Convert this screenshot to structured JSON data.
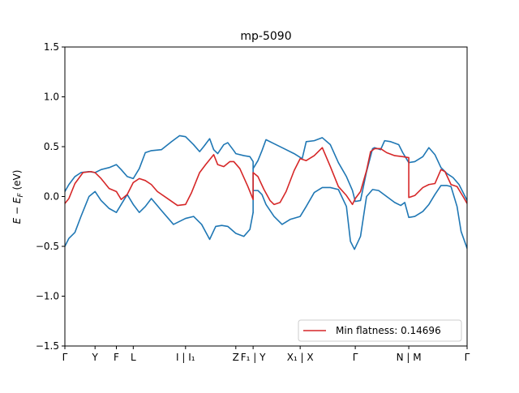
{
  "chart_data": {
    "type": "line",
    "title": "mp-5090",
    "xlabel": "",
    "ylabel": "E − E",
    "ylabel_sub": "F",
    "ylabel_unit": " (eV)",
    "xlim": [
      0,
      1
    ],
    "ylim": [
      -1.5,
      1.5
    ],
    "yticks": [
      -1.5,
      -1.0,
      -0.5,
      0.0,
      0.5,
      1.0,
      1.5
    ],
    "ytick_labels": [
      "−1.5",
      "−1.0",
      "−0.5",
      "0.0",
      "0.5",
      "1.0",
      "1.5"
    ],
    "xticks": [
      {
        "x": 0.0,
        "label": "Γ"
      },
      {
        "x": 0.075,
        "label": "Y"
      },
      {
        "x": 0.128,
        "label": "F"
      },
      {
        "x": 0.17,
        "label": "L"
      },
      {
        "x": 0.3,
        "label": "I | I₁"
      },
      {
        "x": 0.425,
        "label": "Z"
      },
      {
        "x": 0.468,
        "label": "F₁ | Y"
      },
      {
        "x": 0.585,
        "label": "X₁ | X"
      },
      {
        "x": 0.722,
        "label": "Γ"
      },
      {
        "x": 0.855,
        "label": "N | M"
      },
      {
        "x": 1.0,
        "label": "Γ"
      }
    ],
    "legend": {
      "label": "Min flatness: 0.14696",
      "location": "lower-right"
    },
    "grid": false,
    "series": [
      {
        "color": "#1f77b4",
        "points": [
          [
            0.0,
            0.05
          ],
          [
            0.01,
            0.12
          ],
          [
            0.025,
            0.2
          ],
          [
            0.04,
            0.24
          ],
          [
            0.06,
            0.25
          ],
          [
            0.075,
            0.24
          ],
          [
            0.09,
            0.27
          ],
          [
            0.11,
            0.29
          ],
          [
            0.128,
            0.32
          ],
          [
            0.14,
            0.27
          ],
          [
            0.155,
            0.2
          ],
          [
            0.17,
            0.18
          ],
          [
            0.185,
            0.28
          ],
          [
            0.2,
            0.44
          ],
          [
            0.215,
            0.46
          ],
          [
            0.24,
            0.47
          ],
          [
            0.265,
            0.55
          ],
          [
            0.285,
            0.61
          ],
          [
            0.3,
            0.6
          ],
          [
            0.32,
            0.52
          ],
          [
            0.335,
            0.45
          ],
          [
            0.345,
            0.5
          ],
          [
            0.36,
            0.58
          ],
          [
            0.37,
            0.47
          ],
          [
            0.38,
            0.43
          ],
          [
            0.395,
            0.52
          ],
          [
            0.405,
            0.54
          ],
          [
            0.42,
            0.46
          ],
          [
            0.425,
            0.43
          ],
          [
            0.445,
            0.41
          ],
          [
            0.46,
            0.4
          ],
          [
            0.468,
            0.35
          ],
          [
            0.468,
            -0.16
          ]
        ]
      },
      {
        "color": "#1f77b4",
        "points": [
          [
            0.0,
            -0.5
          ],
          [
            0.01,
            -0.42
          ],
          [
            0.025,
            -0.36
          ],
          [
            0.04,
            -0.2
          ],
          [
            0.06,
            0.0
          ],
          [
            0.075,
            0.05
          ],
          [
            0.09,
            -0.04
          ],
          [
            0.11,
            -0.12
          ],
          [
            0.128,
            -0.16
          ],
          [
            0.14,
            -0.08
          ],
          [
            0.155,
            0.02
          ],
          [
            0.17,
            -0.08
          ],
          [
            0.185,
            -0.16
          ],
          [
            0.2,
            -0.1
          ],
          [
            0.215,
            -0.02
          ],
          [
            0.24,
            -0.14
          ],
          [
            0.27,
            -0.28
          ],
          [
            0.3,
            -0.22
          ],
          [
            0.32,
            -0.2
          ],
          [
            0.34,
            -0.28
          ],
          [
            0.36,
            -0.43
          ],
          [
            0.375,
            -0.3
          ],
          [
            0.39,
            -0.29
          ],
          [
            0.405,
            -0.3
          ],
          [
            0.425,
            -0.37
          ],
          [
            0.445,
            -0.4
          ],
          [
            0.46,
            -0.33
          ],
          [
            0.468,
            -0.16
          ]
        ]
      },
      {
        "color": "#1f77b4",
        "points": [
          [
            0.468,
            0.28
          ],
          [
            0.48,
            0.36
          ],
          [
            0.49,
            0.46
          ],
          [
            0.5,
            0.57
          ],
          [
            0.52,
            0.53
          ],
          [
            0.545,
            0.48
          ],
          [
            0.57,
            0.43
          ],
          [
            0.59,
            0.38
          ],
          [
            0.6,
            0.55
          ],
          [
            0.62,
            0.56
          ],
          [
            0.64,
            0.59
          ],
          [
            0.66,
            0.52
          ],
          [
            0.68,
            0.34
          ],
          [
            0.7,
            0.2
          ],
          [
            0.715,
            0.06
          ],
          [
            0.722,
            -0.05
          ],
          [
            0.735,
            -0.04
          ],
          [
            0.75,
            0.25
          ],
          [
            0.765,
            0.48
          ],
          [
            0.77,
            0.49
          ],
          [
            0.785,
            0.47
          ],
          [
            0.795,
            0.56
          ],
          [
            0.81,
            0.55
          ],
          [
            0.83,
            0.52
          ],
          [
            0.84,
            0.44
          ],
          [
            0.855,
            0.34
          ],
          [
            0.87,
            0.35
          ],
          [
            0.89,
            0.4
          ],
          [
            0.905,
            0.49
          ],
          [
            0.92,
            0.42
          ],
          [
            0.935,
            0.29
          ],
          [
            0.95,
            0.23
          ],
          [
            0.965,
            0.19
          ],
          [
            0.98,
            0.12
          ],
          [
            1.0,
            -0.04
          ]
        ]
      },
      {
        "color": "#1f77b4",
        "points": [
          [
            0.468,
            0.06
          ],
          [
            0.48,
            0.06
          ],
          [
            0.49,
            0.02
          ],
          [
            0.5,
            -0.08
          ],
          [
            0.52,
            -0.2
          ],
          [
            0.54,
            -0.28
          ],
          [
            0.56,
            -0.23
          ],
          [
            0.585,
            -0.2
          ],
          [
            0.6,
            -0.1
          ],
          [
            0.62,
            0.04
          ],
          [
            0.64,
            0.09
          ],
          [
            0.66,
            0.09
          ],
          [
            0.68,
            0.07
          ],
          [
            0.7,
            -0.1
          ],
          [
            0.71,
            -0.45
          ],
          [
            0.72,
            -0.53
          ],
          [
            0.735,
            -0.4
          ],
          [
            0.75,
            0.0
          ],
          [
            0.765,
            0.07
          ],
          [
            0.78,
            0.06
          ],
          [
            0.8,
            0.0
          ],
          [
            0.82,
            -0.06
          ],
          [
            0.835,
            -0.09
          ],
          [
            0.845,
            -0.06
          ],
          [
            0.855,
            -0.21
          ],
          [
            0.87,
            -0.2
          ],
          [
            0.89,
            -0.15
          ],
          [
            0.905,
            -0.08
          ],
          [
            0.92,
            0.02
          ],
          [
            0.935,
            0.11
          ],
          [
            0.95,
            0.11
          ],
          [
            0.96,
            0.1
          ],
          [
            0.975,
            -0.1
          ],
          [
            0.985,
            -0.35
          ],
          [
            1.0,
            -0.52
          ]
        ]
      },
      {
        "color": "#d62728",
        "points": [
          [
            0.0,
            -0.07
          ],
          [
            0.01,
            -0.02
          ],
          [
            0.025,
            0.13
          ],
          [
            0.045,
            0.24
          ],
          [
            0.065,
            0.25
          ],
          [
            0.075,
            0.24
          ],
          [
            0.09,
            0.18
          ],
          [
            0.11,
            0.08
          ],
          [
            0.128,
            0.05
          ],
          [
            0.14,
            -0.03
          ],
          [
            0.155,
            0.02
          ],
          [
            0.17,
            0.14
          ],
          [
            0.185,
            0.18
          ],
          [
            0.2,
            0.16
          ],
          [
            0.215,
            0.12
          ],
          [
            0.23,
            0.05
          ],
          [
            0.255,
            -0.02
          ],
          [
            0.28,
            -0.09
          ],
          [
            0.3,
            -0.08
          ],
          [
            0.315,
            0.04
          ],
          [
            0.335,
            0.24
          ],
          [
            0.35,
            0.32
          ],
          [
            0.37,
            0.42
          ],
          [
            0.38,
            0.32
          ],
          [
            0.395,
            0.3
          ],
          [
            0.41,
            0.35
          ],
          [
            0.42,
            0.35
          ],
          [
            0.435,
            0.28
          ],
          [
            0.455,
            0.1
          ],
          [
            0.468,
            -0.03
          ],
          [
            0.468,
            0.24
          ],
          [
            0.48,
            0.2
          ],
          [
            0.495,
            0.07
          ],
          [
            0.51,
            -0.04
          ],
          [
            0.52,
            -0.08
          ],
          [
            0.535,
            -0.06
          ],
          [
            0.55,
            0.05
          ],
          [
            0.57,
            0.26
          ],
          [
            0.585,
            0.38
          ],
          [
            0.6,
            0.36
          ],
          [
            0.62,
            0.41
          ],
          [
            0.64,
            0.49
          ],
          [
            0.66,
            0.3
          ],
          [
            0.68,
            0.1
          ],
          [
            0.7,
            0.01
          ],
          [
            0.715,
            -0.08
          ],
          [
            0.722,
            -0.02
          ],
          [
            0.735,
            0.05
          ],
          [
            0.75,
            0.26
          ],
          [
            0.76,
            0.45
          ],
          [
            0.77,
            0.48
          ],
          [
            0.785,
            0.48
          ],
          [
            0.8,
            0.44
          ],
          [
            0.82,
            0.41
          ],
          [
            0.84,
            0.4
          ],
          [
            0.855,
            0.39
          ],
          [
            0.855,
            -0.01
          ],
          [
            0.87,
            0.01
          ],
          [
            0.89,
            0.09
          ],
          [
            0.905,
            0.12
          ],
          [
            0.92,
            0.13
          ],
          [
            0.935,
            0.27
          ],
          [
            0.945,
            0.25
          ],
          [
            0.96,
            0.12
          ],
          [
            0.975,
            0.1
          ],
          [
            0.99,
            0.0
          ],
          [
            1.0,
            -0.07
          ]
        ]
      }
    ]
  }
}
